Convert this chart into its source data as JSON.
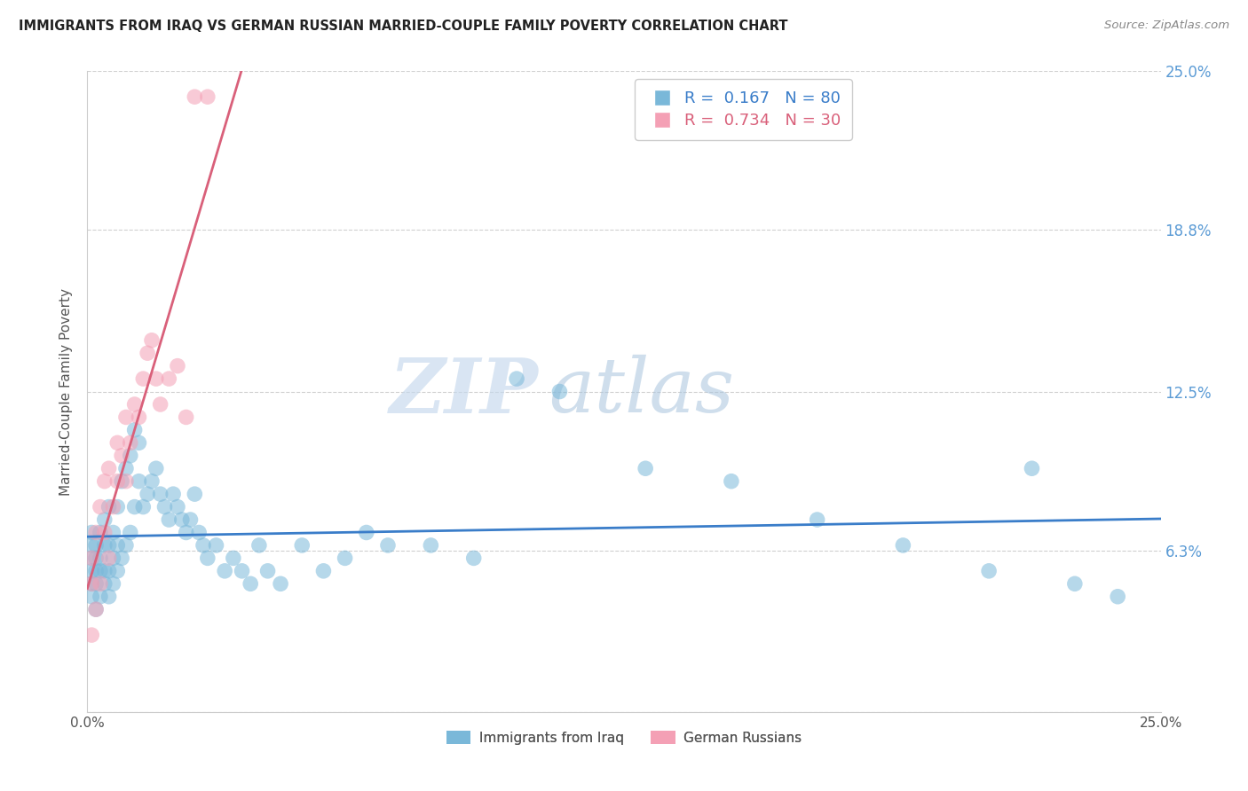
{
  "title": "IMMIGRANTS FROM IRAQ VS GERMAN RUSSIAN MARRIED-COUPLE FAMILY POVERTY CORRELATION CHART",
  "source": "Source: ZipAtlas.com",
  "ylabel": "Married-Couple Family Poverty",
  "R_iraq": 0.167,
  "N_iraq": 80,
  "R_german": 0.734,
  "N_german": 30,
  "color_iraq": "#7ab8d9",
  "color_german": "#f4a0b5",
  "line_color_iraq": "#3a7dc9",
  "line_color_german": "#d9607a",
  "watermark_zip": "ZIP",
  "watermark_atlas": "atlas",
  "xlim": [
    0.0,
    0.25
  ],
  "ylim": [
    0.0,
    0.25
  ],
  "ytick_vals": [
    0.0,
    0.063,
    0.125,
    0.188,
    0.25
  ],
  "ytick_labels": [
    "",
    "6.3%",
    "12.5%",
    "18.8%",
    "25.0%"
  ],
  "legend_iraq": "Immigrants from Iraq",
  "legend_german": "German Russians",
  "iraq_x": [
    0.001,
    0.001,
    0.001,
    0.001,
    0.001,
    0.001,
    0.002,
    0.002,
    0.002,
    0.002,
    0.002,
    0.003,
    0.003,
    0.003,
    0.003,
    0.004,
    0.004,
    0.004,
    0.004,
    0.005,
    0.005,
    0.005,
    0.005,
    0.006,
    0.006,
    0.006,
    0.007,
    0.007,
    0.007,
    0.008,
    0.008,
    0.009,
    0.009,
    0.01,
    0.01,
    0.011,
    0.011,
    0.012,
    0.012,
    0.013,
    0.014,
    0.015,
    0.016,
    0.017,
    0.018,
    0.019,
    0.02,
    0.021,
    0.022,
    0.023,
    0.024,
    0.025,
    0.026,
    0.027,
    0.028,
    0.03,
    0.032,
    0.034,
    0.036,
    0.038,
    0.04,
    0.042,
    0.045,
    0.05,
    0.055,
    0.06,
    0.065,
    0.07,
    0.08,
    0.09,
    0.1,
    0.11,
    0.13,
    0.15,
    0.17,
    0.19,
    0.21,
    0.22,
    0.23,
    0.24
  ],
  "iraq_y": [
    0.045,
    0.05,
    0.055,
    0.06,
    0.065,
    0.07,
    0.04,
    0.05,
    0.055,
    0.06,
    0.065,
    0.045,
    0.055,
    0.06,
    0.07,
    0.05,
    0.055,
    0.065,
    0.075,
    0.045,
    0.055,
    0.065,
    0.08,
    0.05,
    0.06,
    0.07,
    0.055,
    0.065,
    0.08,
    0.06,
    0.09,
    0.065,
    0.095,
    0.07,
    0.1,
    0.08,
    0.11,
    0.09,
    0.105,
    0.08,
    0.085,
    0.09,
    0.095,
    0.085,
    0.08,
    0.075,
    0.085,
    0.08,
    0.075,
    0.07,
    0.075,
    0.085,
    0.07,
    0.065,
    0.06,
    0.065,
    0.055,
    0.06,
    0.055,
    0.05,
    0.065,
    0.055,
    0.05,
    0.065,
    0.055,
    0.06,
    0.07,
    0.065,
    0.065,
    0.06,
    0.13,
    0.125,
    0.095,
    0.09,
    0.075,
    0.065,
    0.055,
    0.095,
    0.05,
    0.045
  ],
  "german_x": [
    0.001,
    0.001,
    0.001,
    0.002,
    0.002,
    0.003,
    0.003,
    0.004,
    0.004,
    0.005,
    0.005,
    0.006,
    0.007,
    0.007,
    0.008,
    0.009,
    0.009,
    0.01,
    0.011,
    0.012,
    0.013,
    0.014,
    0.015,
    0.016,
    0.017,
    0.019,
    0.021,
    0.023,
    0.025,
    0.028
  ],
  "german_y": [
    0.03,
    0.05,
    0.06,
    0.04,
    0.07,
    0.05,
    0.08,
    0.07,
    0.09,
    0.06,
    0.095,
    0.08,
    0.09,
    0.105,
    0.1,
    0.09,
    0.115,
    0.105,
    0.12,
    0.115,
    0.13,
    0.14,
    0.145,
    0.13,
    0.12,
    0.13,
    0.135,
    0.115,
    0.24,
    0.24
  ]
}
